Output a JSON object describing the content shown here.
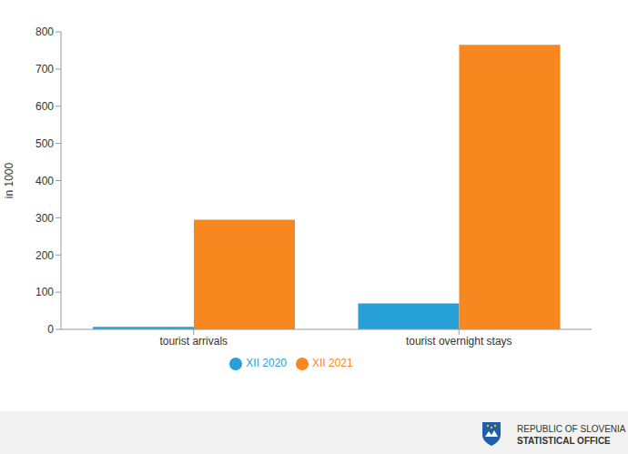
{
  "chart_data": {
    "type": "bar",
    "y_label": "in 1000",
    "categories": [
      "tourist arrivals",
      "tourist overnight stays"
    ],
    "series": [
      {
        "name": "XII 2020",
        "color": "#27a0d7",
        "values": [
          7,
          70
        ]
      },
      {
        "name": "XII 2021",
        "color": "#f7871f",
        "values": [
          295,
          765
        ]
      }
    ],
    "ylim": [
      0,
      800
    ],
    "yticks": [
      0,
      100,
      200,
      300,
      400,
      500,
      600,
      700,
      800
    ],
    "grid": false,
    "legend": "bottom"
  },
  "footer": {
    "lines": [
      "REPUBLIC OF SLOVENIA",
      "STATISTICAL OFFICE"
    ]
  }
}
